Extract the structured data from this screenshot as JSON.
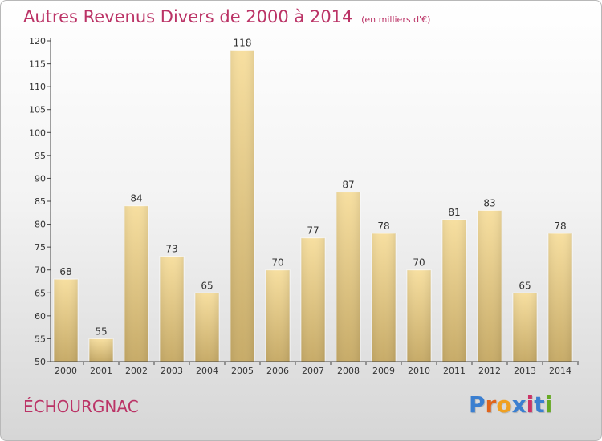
{
  "title": "Autres Revenus Divers de 2000 à 2014",
  "subtitle": "(en milliers d'€)",
  "commune": "ÉCHOURGNAC",
  "brand": {
    "letters": [
      "P",
      "r",
      "o",
      "x",
      "i",
      "t",
      "i"
    ],
    "colors": [
      "#3b7fd0",
      "#e0641c",
      "#f0a020",
      "#3b7fd0",
      "#cc3366",
      "#3b7fd0",
      "#66aa22"
    ]
  },
  "colors": {
    "title": "#bb3366",
    "bar_light": "#f7dfa0",
    "bar_dark": "#c7ab68",
    "axis": "#444444"
  },
  "chart_data": {
    "type": "bar",
    "categories": [
      "2000",
      "2001",
      "2002",
      "2003",
      "2004",
      "2005",
      "2006",
      "2007",
      "2008",
      "2009",
      "2010",
      "2011",
      "2012",
      "2013",
      "2014"
    ],
    "values": [
      68,
      55,
      84,
      73,
      65,
      118,
      70,
      77,
      87,
      78,
      70,
      81,
      83,
      65,
      78
    ],
    "ylim": [
      50,
      120
    ],
    "yticks": [
      50,
      55,
      60,
      65,
      70,
      75,
      80,
      85,
      90,
      95,
      100,
      105,
      110,
      115,
      120
    ],
    "grid": false,
    "data_labels": true
  }
}
